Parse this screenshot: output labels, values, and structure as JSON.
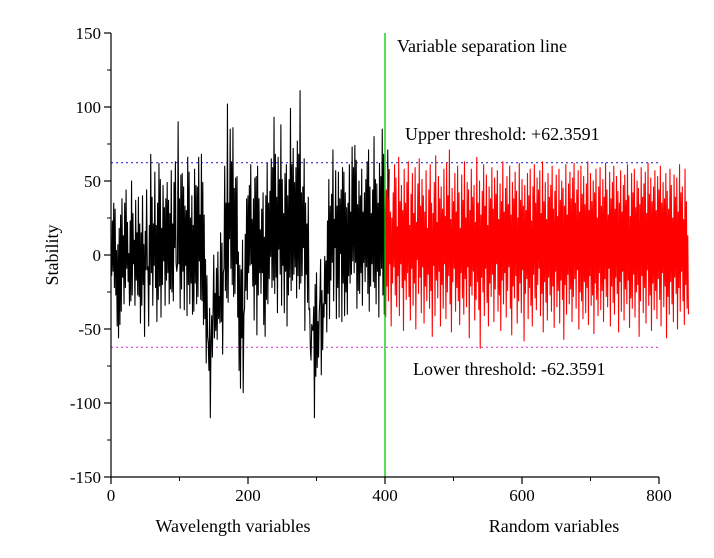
{
  "chart_data": {
    "type": "line",
    "xlim": [
      0,
      800
    ],
    "ylim": [
      -150,
      150
    ],
    "ylabel": "Stability",
    "x_group_labels": [
      "Wavelength variables",
      "Random variables"
    ],
    "xticks": [
      0,
      200,
      400,
      600,
      800
    ],
    "yticks": [
      -150,
      -100,
      -50,
      0,
      50,
      100,
      150
    ],
    "grid": false,
    "series": [
      {
        "color": "#000000",
        "x_start": 1,
        "x_step": 1,
        "values": [
          -14,
          23,
          -11,
          35,
          -22,
          31,
          -27,
          3,
          -48,
          7,
          -56,
          18,
          -47,
          27,
          -38,
          38,
          -15,
          13,
          -33,
          35,
          -22,
          44,
          -9,
          22,
          -18,
          1,
          -34,
          23,
          -31,
          50,
          -27,
          28,
          -6,
          10,
          -34,
          37,
          -17,
          15,
          -27,
          39,
          -28,
          21,
          -46,
          15,
          -34,
          40,
          -20,
          7,
          -55,
          16,
          -10,
          44,
          -10,
          -8,
          -48,
          20,
          -20,
          68,
          -12,
          39,
          -34,
          21,
          -7,
          56,
          -22,
          20,
          -45,
          35,
          -30,
          62,
          -21,
          51,
          -42,
          18,
          -20,
          47,
          -4,
          32,
          -34,
          38,
          -17,
          49,
          -12,
          37,
          -33,
          28,
          -23,
          57,
          -25,
          21,
          -31,
          49,
          5,
          63,
          -5,
          -11,
          -7,
          90,
          -6,
          38,
          -36,
          54,
          -23,
          55,
          -11,
          46,
          -37,
          33,
          -7,
          30,
          -41,
          66,
          -20,
          56,
          -33,
          25,
          -19,
          40,
          -40,
          20,
          -38,
          58,
          -19,
          47,
          -33,
          46,
          -28,
          66,
          -4,
          27,
          -30,
          68,
          -31,
          49,
          -47,
          27,
          -43,
          -3,
          -73,
          -14,
          -55,
          -60,
          -78,
          -36,
          -110,
          -58,
          -41,
          -69,
          -38,
          0,
          -56,
          -26,
          -51,
          -9,
          -57,
          2,
          -43,
          -28,
          -46,
          15,
          -45,
          8,
          -67,
          -12,
          -9,
          60,
          -24,
          35,
          -29,
          102,
          -32,
          35,
          11,
          85,
          -9,
          63,
          -20,
          86,
          -28,
          45,
          -26,
          52,
          -6,
          53,
          -42,
          2,
          -78,
          -7,
          -90,
          -10,
          -56,
          10,
          -93,
          -40,
          -36,
          14,
          -24,
          38,
          -30,
          40,
          -12,
          47,
          -7,
          61,
          -6,
          24,
          -21,
          38,
          -44,
          52,
          -20,
          53,
          -54,
          60,
          -27,
          38,
          -12,
          17,
          -26,
          31,
          -12,
          42,
          -47,
          12,
          -55,
          40,
          -30,
          62,
          -33,
          35,
          -16,
          43,
          -1,
          65,
          -22,
          59,
          -17,
          93,
          -26,
          68,
          -15,
          39,
          -39,
          66,
          4,
          51,
          -13,
          88,
          -34,
          51,
          -7,
          28,
          -39,
          55,
          -11,
          61,
          -48,
          40,
          -27,
          51,
          -15,
          99,
          -24,
          61,
          -17,
          72,
          -13,
          49,
          -8,
          59,
          -29,
          77,
          -14,
          68,
          -23,
          111,
          -19,
          42,
          -14,
          46,
          5,
          65,
          -51,
          35,
          -13,
          21,
          -32,
          39,
          -37,
          -36,
          -63,
          -71,
          -47,
          -50,
          -51,
          -35,
          -110,
          -20,
          -82,
          -12,
          -76,
          -45,
          -69,
          -39,
          -29,
          -3,
          -81,
          -24,
          -64,
          -33,
          -42,
          -1,
          -33,
          -4,
          -52,
          23,
          -26,
          51,
          -43,
          33,
          -17,
          41,
          -5,
          71,
          -31,
          24,
          5,
          57,
          -43,
          33,
          -22,
          56,
          -42,
          38,
          1,
          44,
          -45,
          59,
          -19,
          56,
          -41,
          42,
          -25,
          32,
          -40,
          35,
          -14,
          61,
          -19,
          29,
          -13,
          73,
          -4,
          59,
          -12,
          74,
          -5,
          64,
          -36,
          34,
          -24,
          50,
          -26,
          40,
          -12,
          58,
          -34,
          29,
          -5,
          42,
          -18,
          51,
          -8,
          63,
          -26,
          71,
          -38,
          46,
          -21,
          28,
          -6,
          44,
          -18,
          80,
          -22,
          51,
          -33,
          48,
          -11,
          35,
          -42,
          62,
          -14,
          53,
          -9,
          85,
          -27,
          68,
          -40,
          33,
          -27,
          43,
          -6,
          71,
          14,
          58
        ]
      },
      {
        "color": "#ff0000",
        "x_start": 401,
        "x_step": 1,
        "values": [
          -42,
          44,
          -21,
          58,
          -31,
          38,
          -6,
          29,
          -48,
          25,
          -19,
          42,
          -8,
          61,
          -27,
          52,
          -35,
          19,
          -14,
          66,
          -41,
          36,
          -6,
          47,
          -22,
          30,
          -51,
          58,
          -17,
          35,
          -30,
          49,
          -12,
          63,
          -28,
          20,
          -44,
          41,
          -9,
          55,
          -34,
          28,
          -19,
          59,
          -50,
          22,
          -3,
          48,
          -26,
          65,
          -15,
          33,
          -39,
          51,
          -8,
          40,
          -46,
          29,
          -21,
          57,
          -31,
          18,
          -13,
          44,
          -36,
          61,
          -24,
          35,
          -55,
          28,
          -7,
          49,
          -41,
          67,
          -17,
          22,
          -29,
          53,
          -11,
          38,
          -48,
          46,
          -20,
          31,
          -36,
          58,
          -6,
          26,
          -43,
          62,
          -25,
          40,
          -14,
          71,
          -33,
          24,
          -52,
          45,
          -18,
          36,
          -9,
          55,
          -38,
          29,
          -22,
          60,
          -31,
          42,
          -47,
          18,
          -12,
          54,
          -29,
          37,
          -40,
          63,
          -16,
          25,
          -35,
          49,
          -8,
          44,
          -56,
          30,
          -21,
          58,
          -27,
          39,
          -11,
          47,
          -44,
          22,
          -30,
          66,
          -18,
          35,
          -37,
          50,
          -63,
          27,
          -15,
          43,
          -25,
          61,
          -41,
          33,
          -9,
          54,
          -32,
          20,
          -48,
          46,
          -19,
          38,
          -28,
          59,
          -13,
          31,
          -45,
          52,
          -23,
          41,
          -6,
          57,
          -38,
          24,
          -27,
          48,
          -51,
          36,
          -17,
          63,
          -33,
          29,
          -12,
          45,
          -42,
          53,
          -24,
          34,
          -8,
          60,
          -36,
          27,
          -54,
          49,
          -21,
          38,
          -29,
          56,
          -14,
          43,
          -46,
          25,
          -31,
          62,
          -19,
          37,
          -39,
          51,
          -10,
          33,
          -58,
          47,
          -26,
          30,
          -16,
          55,
          -43,
          40,
          -22,
          58,
          -34,
          23,
          -48,
          46,
          -13,
          61,
          -29,
          35,
          -37,
          52,
          -20,
          44,
          -9,
          57,
          -41,
          28,
          -26,
          63,
          -52,
          36,
          -18,
          49,
          -32,
          24,
          -44,
          55,
          -15,
          39,
          -27,
          47,
          -38,
          60,
          -21,
          31,
          -49,
          43,
          -11,
          54,
          -35,
          26,
          -24,
          58,
          -46,
          37,
          -17,
          50,
          -30,
          45,
          -57,
          33,
          -20,
          61,
          -40,
          27,
          -13,
          48,
          -33,
          56,
          -23,
          38,
          -45,
          52,
          -28,
          62,
          -16,
          35,
          -36,
          44,
          -10,
          57,
          -50,
          29,
          -25,
          60,
          -31,
          41,
          -43,
          53,
          -18,
          34,
          -39,
          48,
          -22,
          63,
          -47,
          30,
          -14,
          55,
          -34,
          36,
          -27,
          50,
          -53,
          42,
          -19,
          58,
          -30,
          25,
          -41,
          46,
          -12,
          59,
          -37,
          33,
          -24,
          51,
          -45,
          39,
          -16,
          62,
          -28,
          44,
          -35,
          27,
          -9,
          56,
          -48,
          38,
          -21,
          49,
          -32,
          60,
          -40,
          31,
          -15,
          53,
          -26,
          43,
          -52,
          35,
          -18,
          57,
          -38,
          29,
          -11,
          47,
          -44,
          54,
          -23,
          37,
          -33,
          61,
          -17,
          40,
          -49,
          26,
          -29,
          55,
          -36,
          42,
          -13,
          58,
          -42,
          32,
          -25,
          50,
          -20,
          45,
          -55,
          34,
          -31,
          59,
          -14,
          39,
          -39,
          48,
          -22,
          56,
          -46,
          28,
          -10,
          62,
          -34,
          41,
          -27,
          52,
          -51,
          36,
          -19,
          46,
          -37,
          57,
          -24,
          30,
          -43,
          53,
          -16,
          44,
          -30,
          60,
          -48,
          35,
          -12,
          49,
          -35,
          38,
          -21,
          55,
          -56,
          43,
          -28,
          31,
          -40,
          58,
          -18,
          47,
          -33,
          25,
          -45,
          54,
          -15,
          39,
          -26,
          52,
          -50,
          29,
          -22,
          61,
          -38,
          42,
          -11,
          46,
          -31,
          24,
          -47,
          58,
          -20,
          36,
          -36,
          13,
          -40
        ]
      }
    ],
    "thresholds": {
      "upper": {
        "value": 62.3591,
        "color": "#3333cc",
        "label": "Upper threshold: +62.3591"
      },
      "lower": {
        "value": -62.3591,
        "color": "#cc44cc",
        "label": "Lower threshold: -62.3591"
      }
    },
    "separator": {
      "x": 400,
      "color": "#00cc00",
      "label": "Variable separation line"
    }
  }
}
